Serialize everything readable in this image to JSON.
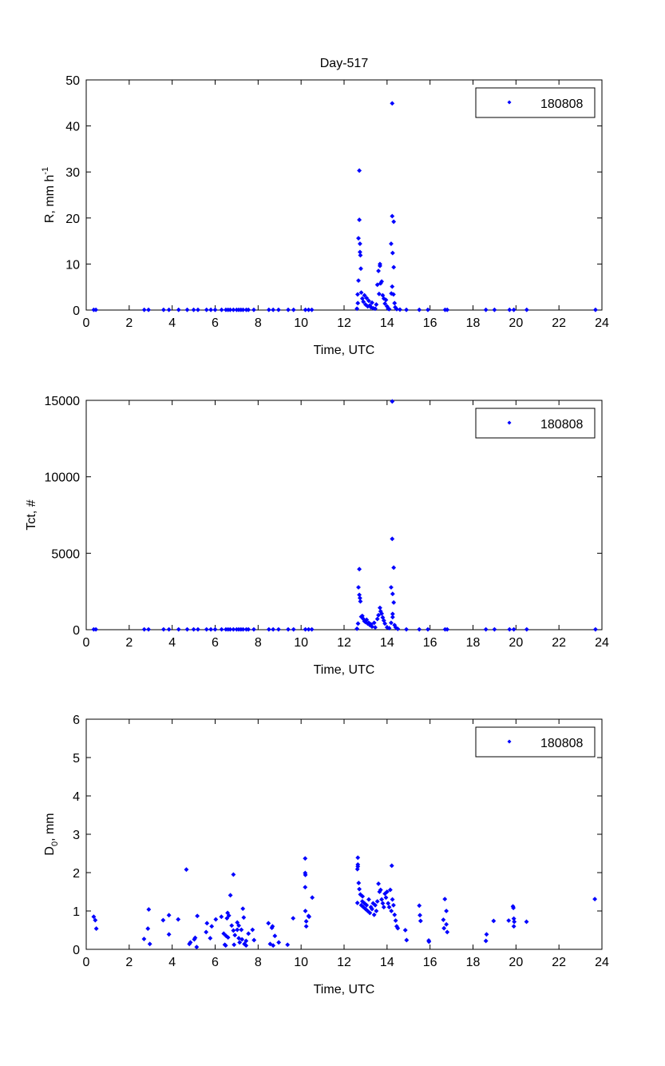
{
  "figure_title": "Day-517",
  "marker_color": "#0000ff",
  "chart_data": [
    {
      "type": "scatter",
      "title": "Day-517",
      "xlabel": "Time, UTC",
      "ylabel": "R, mm h",
      "ylabel_sup": "-1",
      "xlim": [
        0,
        24
      ],
      "ylim": [
        0,
        50
      ],
      "xticks": [
        0,
        2,
        4,
        6,
        8,
        10,
        12,
        14,
        16,
        18,
        20,
        22,
        24
      ],
      "yticks": [
        0,
        10,
        20,
        30,
        40,
        50
      ],
      "legend": {
        "label": "180808",
        "position": "top-right"
      },
      "grid": false,
      "points": [
        [
          0.35,
          0.05
        ],
        [
          0.45,
          0.05
        ],
        [
          2.7,
          0.05
        ],
        [
          2.9,
          0.05
        ],
        [
          3.6,
          0.05
        ],
        [
          3.85,
          0.05
        ],
        [
          4.3,
          0.05
        ],
        [
          4.7,
          0.05
        ],
        [
          5.0,
          0.05
        ],
        [
          5.2,
          0.05
        ],
        [
          5.6,
          0.05
        ],
        [
          5.8,
          0.05
        ],
        [
          6.0,
          0.05
        ],
        [
          6.3,
          0.05
        ],
        [
          6.5,
          0.05
        ],
        [
          6.6,
          0.05
        ],
        [
          6.7,
          0.05
        ],
        [
          6.85,
          0.05
        ],
        [
          7.0,
          0.05
        ],
        [
          7.1,
          0.05
        ],
        [
          7.2,
          0.05
        ],
        [
          7.3,
          0.05
        ],
        [
          7.45,
          0.05
        ],
        [
          7.55,
          0.05
        ],
        [
          7.8,
          0.05
        ],
        [
          8.5,
          0.05
        ],
        [
          8.7,
          0.05
        ],
        [
          8.95,
          0.05
        ],
        [
          9.4,
          0.05
        ],
        [
          9.65,
          0.05
        ],
        [
          10.2,
          0.05
        ],
        [
          10.35,
          0.05
        ],
        [
          10.5,
          0.05
        ],
        [
          14.9,
          0.05
        ],
        [
          15.5,
          0.05
        ],
        [
          15.9,
          0.05
        ],
        [
          16.7,
          0.05
        ],
        [
          16.8,
          0.05
        ],
        [
          18.6,
          0.05
        ],
        [
          19.0,
          0.05
        ],
        [
          19.7,
          0.05
        ],
        [
          19.9,
          0.05
        ],
        [
          20.5,
          0.05
        ],
        [
          23.7,
          0.05
        ],
        [
          12.6,
          0.3
        ],
        [
          12.63,
          3.4
        ],
        [
          12.64,
          1.5
        ],
        [
          12.67,
          6.4
        ],
        [
          12.67,
          15.6
        ],
        [
          12.71,
          19.6
        ],
        [
          12.71,
          30.3
        ],
        [
          12.74,
          14.4
        ],
        [
          12.74,
          12.6
        ],
        [
          12.76,
          11.9
        ],
        [
          12.78,
          9.0
        ],
        [
          12.8,
          3.8
        ],
        [
          12.85,
          2.5
        ],
        [
          12.9,
          1.8
        ],
        [
          12.95,
          3.2
        ],
        [
          13.0,
          1.2
        ],
        [
          13.05,
          2.6
        ],
        [
          13.1,
          0.8
        ],
        [
          13.15,
          2.0
        ],
        [
          13.2,
          1.0
        ],
        [
          13.25,
          0.6
        ],
        [
          13.3,
          1.6
        ],
        [
          13.35,
          0.4
        ],
        [
          13.45,
          0.3
        ],
        [
          13.5,
          1.2
        ],
        [
          13.55,
          5.5
        ],
        [
          13.6,
          8.5
        ],
        [
          13.63,
          3.5
        ],
        [
          13.67,
          10.0
        ],
        [
          13.67,
          9.6
        ],
        [
          13.7,
          5.8
        ],
        [
          13.75,
          6.2
        ],
        [
          13.8,
          3.2
        ],
        [
          13.85,
          2.5
        ],
        [
          13.9,
          1.4
        ],
        [
          13.95,
          2.2
        ],
        [
          14.0,
          0.8
        ],
        [
          14.05,
          0.3
        ],
        [
          14.1,
          0.2
        ],
        [
          14.19,
          14.4
        ],
        [
          14.2,
          3.6
        ],
        [
          14.24,
          44.9
        ],
        [
          14.24,
          20.4
        ],
        [
          14.24,
          5.1
        ],
        [
          14.26,
          12.4
        ],
        [
          14.31,
          19.2
        ],
        [
          14.31,
          9.3
        ],
        [
          14.3,
          3.4
        ],
        [
          14.35,
          1.5
        ],
        [
          14.38,
          0.6
        ],
        [
          14.45,
          0.2
        ],
        [
          14.6,
          0.1
        ]
      ]
    },
    {
      "type": "scatter",
      "xlabel": "Time, UTC",
      "ylabel": "Tct, #",
      "xlim": [
        0,
        24
      ],
      "ylim": [
        0,
        15000
      ],
      "xticks": [
        0,
        2,
        4,
        6,
        8,
        10,
        12,
        14,
        16,
        18,
        20,
        22,
        24
      ],
      "yticks": [
        0,
        5000,
        10000,
        15000
      ],
      "legend": {
        "label": "180808",
        "position": "top-right"
      },
      "grid": false,
      "points": [
        [
          0.35,
          20
        ],
        [
          0.45,
          20
        ],
        [
          2.7,
          20
        ],
        [
          2.9,
          20
        ],
        [
          3.6,
          20
        ],
        [
          3.85,
          20
        ],
        [
          4.3,
          20
        ],
        [
          4.7,
          20
        ],
        [
          5.0,
          20
        ],
        [
          5.2,
          20
        ],
        [
          5.6,
          20
        ],
        [
          5.8,
          20
        ],
        [
          6.0,
          20
        ],
        [
          6.3,
          20
        ],
        [
          6.5,
          20
        ],
        [
          6.6,
          20
        ],
        [
          6.7,
          20
        ],
        [
          6.85,
          20
        ],
        [
          7.0,
          20
        ],
        [
          7.1,
          20
        ],
        [
          7.2,
          20
        ],
        [
          7.3,
          20
        ],
        [
          7.45,
          20
        ],
        [
          7.55,
          20
        ],
        [
          7.8,
          20
        ],
        [
          8.5,
          20
        ],
        [
          8.7,
          20
        ],
        [
          8.95,
          20
        ],
        [
          9.4,
          20
        ],
        [
          9.65,
          20
        ],
        [
          10.2,
          20
        ],
        [
          10.35,
          20
        ],
        [
          10.5,
          20
        ],
        [
          14.9,
          20
        ],
        [
          15.5,
          20
        ],
        [
          15.9,
          20
        ],
        [
          16.7,
          20
        ],
        [
          16.8,
          20
        ],
        [
          18.6,
          20
        ],
        [
          19.0,
          20
        ],
        [
          19.7,
          20
        ],
        [
          19.9,
          20
        ],
        [
          20.5,
          20
        ],
        [
          23.7,
          20
        ],
        [
          12.6,
          60
        ],
        [
          12.65,
          400
        ],
        [
          12.67,
          2770
        ],
        [
          12.71,
          3960
        ],
        [
          12.71,
          2280
        ],
        [
          12.74,
          2070
        ],
        [
          12.76,
          1850
        ],
        [
          12.8,
          850
        ],
        [
          12.85,
          900
        ],
        [
          12.9,
          700
        ],
        [
          12.95,
          550
        ],
        [
          13.0,
          500
        ],
        [
          13.05,
          650
        ],
        [
          13.1,
          400
        ],
        [
          13.15,
          450
        ],
        [
          13.2,
          300
        ],
        [
          13.25,
          350
        ],
        [
          13.3,
          200
        ],
        [
          13.4,
          450
        ],
        [
          13.45,
          150
        ],
        [
          13.55,
          700
        ],
        [
          13.6,
          950
        ],
        [
          13.67,
          1430
        ],
        [
          13.7,
          1200
        ],
        [
          13.75,
          1050
        ],
        [
          13.8,
          800
        ],
        [
          13.85,
          600
        ],
        [
          13.9,
          400
        ],
        [
          14.0,
          150
        ],
        [
          14.1,
          100
        ],
        [
          14.19,
          2770
        ],
        [
          14.19,
          450
        ],
        [
          14.24,
          14930
        ],
        [
          14.24,
          5940
        ],
        [
          14.26,
          2340
        ],
        [
          14.26,
          1030
        ],
        [
          14.26,
          820
        ],
        [
          14.31,
          4060
        ],
        [
          14.31,
          1780
        ],
        [
          14.35,
          300
        ],
        [
          14.4,
          150
        ],
        [
          14.5,
          50
        ]
      ]
    },
    {
      "type": "scatter",
      "xlabel": "Time, UTC",
      "ylabel": "D",
      "ylabel_sub": "0",
      "ylabel_suffix": ", mm",
      "xlim": [
        0,
        24
      ],
      "ylim": [
        0,
        6
      ],
      "xticks": [
        0,
        2,
        4,
        6,
        8,
        10,
        12,
        14,
        16,
        18,
        20,
        22,
        24
      ],
      "yticks": [
        0,
        1,
        2,
        3,
        4,
        5,
        6
      ],
      "legend": {
        "label": "180808",
        "position": "top-right"
      },
      "grid": false,
      "points": [
        [
          0.35,
          0.85
        ],
        [
          0.42,
          0.76
        ],
        [
          0.47,
          0.54
        ],
        [
          2.69,
          0.27
        ],
        [
          2.91,
          1.04
        ],
        [
          2.87,
          0.54
        ],
        [
          2.96,
          0.14
        ],
        [
          3.58,
          0.76
        ],
        [
          3.85,
          0.89
        ],
        [
          3.85,
          0.39
        ],
        [
          4.28,
          0.78
        ],
        [
          4.66,
          2.08
        ],
        [
          4.8,
          0.14
        ],
        [
          4.85,
          0.18
        ],
        [
          5.03,
          0.26
        ],
        [
          5.07,
          0.3
        ],
        [
          5.14,
          0.06
        ],
        [
          5.17,
          0.87
        ],
        [
          5.58,
          0.45
        ],
        [
          5.62,
          0.68
        ],
        [
          5.77,
          0.29
        ],
        [
          5.84,
          0.6
        ],
        [
          6.03,
          0.78
        ],
        [
          6.29,
          0.85
        ],
        [
          6.4,
          0.41
        ],
        [
          6.45,
          0.12
        ],
        [
          6.49,
          0.1
        ],
        [
          6.51,
          0.35
        ],
        [
          6.55,
          0.81
        ],
        [
          6.58,
          0.95
        ],
        [
          6.6,
          0.31
        ],
        [
          6.64,
          0.88
        ],
        [
          6.71,
          1.41
        ],
        [
          6.77,
          0.62
        ],
        [
          6.85,
          1.95
        ],
        [
          6.85,
          0.49
        ],
        [
          6.88,
          0.12
        ],
        [
          6.92,
          0.37
        ],
        [
          7.03,
          0.51
        ],
        [
          7.03,
          0.7
        ],
        [
          7.1,
          0.62
        ],
        [
          7.1,
          0.29
        ],
        [
          7.14,
          0.18
        ],
        [
          7.22,
          0.51
        ],
        [
          7.25,
          0.26
        ],
        [
          7.29,
          1.06
        ],
        [
          7.33,
          0.83
        ],
        [
          7.36,
          0.14
        ],
        [
          7.44,
          0.1
        ],
        [
          7.44,
          0.22
        ],
        [
          7.55,
          0.41
        ],
        [
          7.74,
          0.51
        ],
        [
          7.81,
          0.24
        ],
        [
          8.48,
          0.68
        ],
        [
          8.56,
          0.14
        ],
        [
          8.64,
          0.56
        ],
        [
          8.67,
          0.6
        ],
        [
          8.7,
          0.1
        ],
        [
          8.78,
          0.35
        ],
        [
          8.96,
          0.18
        ],
        [
          9.37,
          0.12
        ],
        [
          9.63,
          0.81
        ],
        [
          10.19,
          2.37
        ],
        [
          10.19,
          1.99
        ],
        [
          10.2,
          1.94
        ],
        [
          10.19,
          1.62
        ],
        [
          10.2,
          1.0
        ],
        [
          10.24,
          0.73
        ],
        [
          10.24,
          0.6
        ],
        [
          10.35,
          0.87
        ],
        [
          10.37,
          0.85
        ],
        [
          10.52,
          1.35
        ],
        [
          12.64,
          2.39
        ],
        [
          12.64,
          2.21
        ],
        [
          12.64,
          2.16
        ],
        [
          12.62,
          2.09
        ],
        [
          12.68,
          1.73
        ],
        [
          12.71,
          1.57
        ],
        [
          12.76,
          1.43
        ],
        [
          12.86,
          1.38
        ],
        [
          12.62,
          1.21
        ],
        [
          12.8,
          1.15
        ],
        [
          12.85,
          1.25
        ],
        [
          12.9,
          1.1
        ],
        [
          12.95,
          1.2
        ],
        [
          13.0,
          1.05
        ],
        [
          13.05,
          1.15
        ],
        [
          13.1,
          1.0
        ],
        [
          13.15,
          1.3
        ],
        [
          13.2,
          0.95
        ],
        [
          13.25,
          1.1
        ],
        [
          13.3,
          1.05
        ],
        [
          13.35,
          1.2
        ],
        [
          13.4,
          0.9
        ],
        [
          13.45,
          1.15
        ],
        [
          13.5,
          1.0
        ],
        [
          13.55,
          1.25
        ],
        [
          13.6,
          1.71
        ],
        [
          13.65,
          1.5
        ],
        [
          13.7,
          1.55
        ],
        [
          13.75,
          1.3
        ],
        [
          13.8,
          1.2
        ],
        [
          13.85,
          1.1
        ],
        [
          13.9,
          1.45
        ],
        [
          13.95,
          1.35
        ],
        [
          14.0,
          1.5
        ],
        [
          14.05,
          1.2
        ],
        [
          14.1,
          1.1
        ],
        [
          14.15,
          1.55
        ],
        [
          14.22,
          2.18
        ],
        [
          14.2,
          1.0
        ],
        [
          14.25,
          1.3
        ],
        [
          14.3,
          1.15
        ],
        [
          14.35,
          0.9
        ],
        [
          14.4,
          0.75
        ],
        [
          14.45,
          0.6
        ],
        [
          14.5,
          0.55
        ],
        [
          14.91,
          0.24
        ],
        [
          14.85,
          0.5
        ],
        [
          15.5,
          1.14
        ],
        [
          15.53,
          0.89
        ],
        [
          15.56,
          0.74
        ],
        [
          15.94,
          0.23
        ],
        [
          15.95,
          0.2
        ],
        [
          16.69,
          1.31
        ],
        [
          16.76,
          1.0
        ],
        [
          16.62,
          0.77
        ],
        [
          16.65,
          0.55
        ],
        [
          16.76,
          0.65
        ],
        [
          16.8,
          0.45
        ],
        [
          18.63,
          0.39
        ],
        [
          18.6,
          0.22
        ],
        [
          18.96,
          0.74
        ],
        [
          19.66,
          0.75
        ],
        [
          19.86,
          1.12
        ],
        [
          19.88,
          1.08
        ],
        [
          19.9,
          0.8
        ],
        [
          19.92,
          0.72
        ],
        [
          19.9,
          0.6
        ],
        [
          20.49,
          0.72
        ],
        [
          23.67,
          1.31
        ]
      ]
    }
  ]
}
